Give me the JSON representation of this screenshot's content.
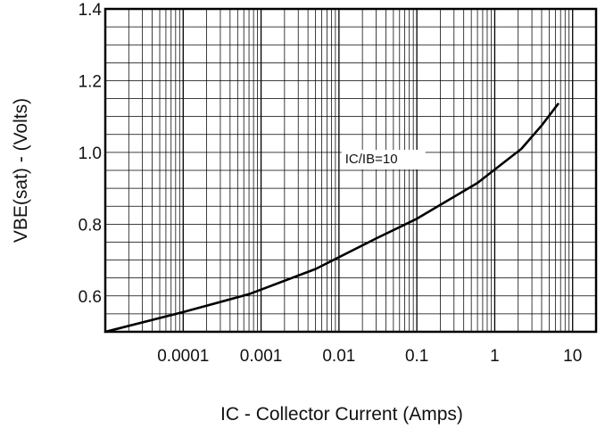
{
  "chart_data": {
    "type": "line",
    "xscale": "log",
    "xlim": [
      1e-05,
      20
    ],
    "ylim": [
      0.5,
      1.4
    ],
    "grid": true,
    "title": "",
    "xlabel": "IC - Collector Current (Amps)",
    "ylabel": "VBE(sat) - (Volts)",
    "x_ticks": [
      {
        "value": 0.0001,
        "label": "0.0001"
      },
      {
        "value": 0.001,
        "label": "0.001"
      },
      {
        "value": 0.01,
        "label": "0.01"
      },
      {
        "value": 0.1,
        "label": "0.1"
      },
      {
        "value": 1,
        "label": "1"
      },
      {
        "value": 10,
        "label": "10"
      }
    ],
    "y_ticks": [
      {
        "value": 0.6,
        "label": "0.6"
      },
      {
        "value": 0.8,
        "label": "0.8"
      },
      {
        "value": 1.0,
        "label": "1.0"
      },
      {
        "value": 1.2,
        "label": "1.2"
      },
      {
        "value": 1.4,
        "label": "1.4"
      }
    ],
    "annotations": [
      {
        "text": "IC/IB=10",
        "x": 0.012,
        "y": 0.97
      }
    ],
    "series": [
      {
        "x": [
          1e-05,
          0.0001,
          0.0007,
          0.005,
          0.03,
          0.1,
          0.6,
          2.2,
          4,
          6.5
        ],
        "y": [
          0.5,
          0.555,
          0.605,
          0.675,
          0.76,
          0.815,
          0.915,
          1.01,
          1.075,
          1.135
        ]
      }
    ]
  }
}
